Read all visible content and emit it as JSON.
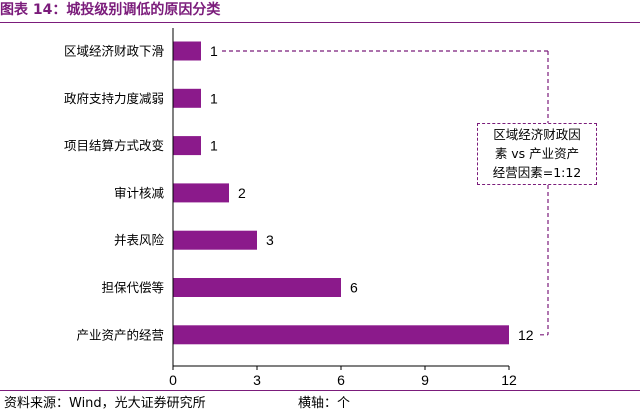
{
  "header": {
    "title": "图表 14：城投级别调低的原因分类"
  },
  "footer": {
    "source": "资料来源：Wind，光大证券研究所",
    "axis_unit": "横轴：个"
  },
  "annotation": {
    "lines": [
      "区域经济财政因",
      "素 vs 产业资产",
      "经营因素=1:12"
    ]
  },
  "colors": {
    "bar": "#8b1a8b",
    "accent": "#7b1c7b"
  },
  "chart_data": {
    "type": "bar",
    "orientation": "horizontal",
    "title": "图表 14：城投级别调低的原因分类",
    "xlabel": "",
    "ylabel": "",
    "xlim": [
      0,
      12
    ],
    "xticks": [
      0,
      3,
      6,
      9,
      12
    ],
    "categories": [
      "区域经济财政下滑",
      "政府支持力度减弱",
      "项目结算方式改变",
      "审计核减",
      "并表风险",
      "担保代偿等",
      "产业资产的经营"
    ],
    "values": [
      1,
      1,
      1,
      2,
      3,
      6,
      12
    ],
    "grid": false,
    "legend": "none"
  }
}
